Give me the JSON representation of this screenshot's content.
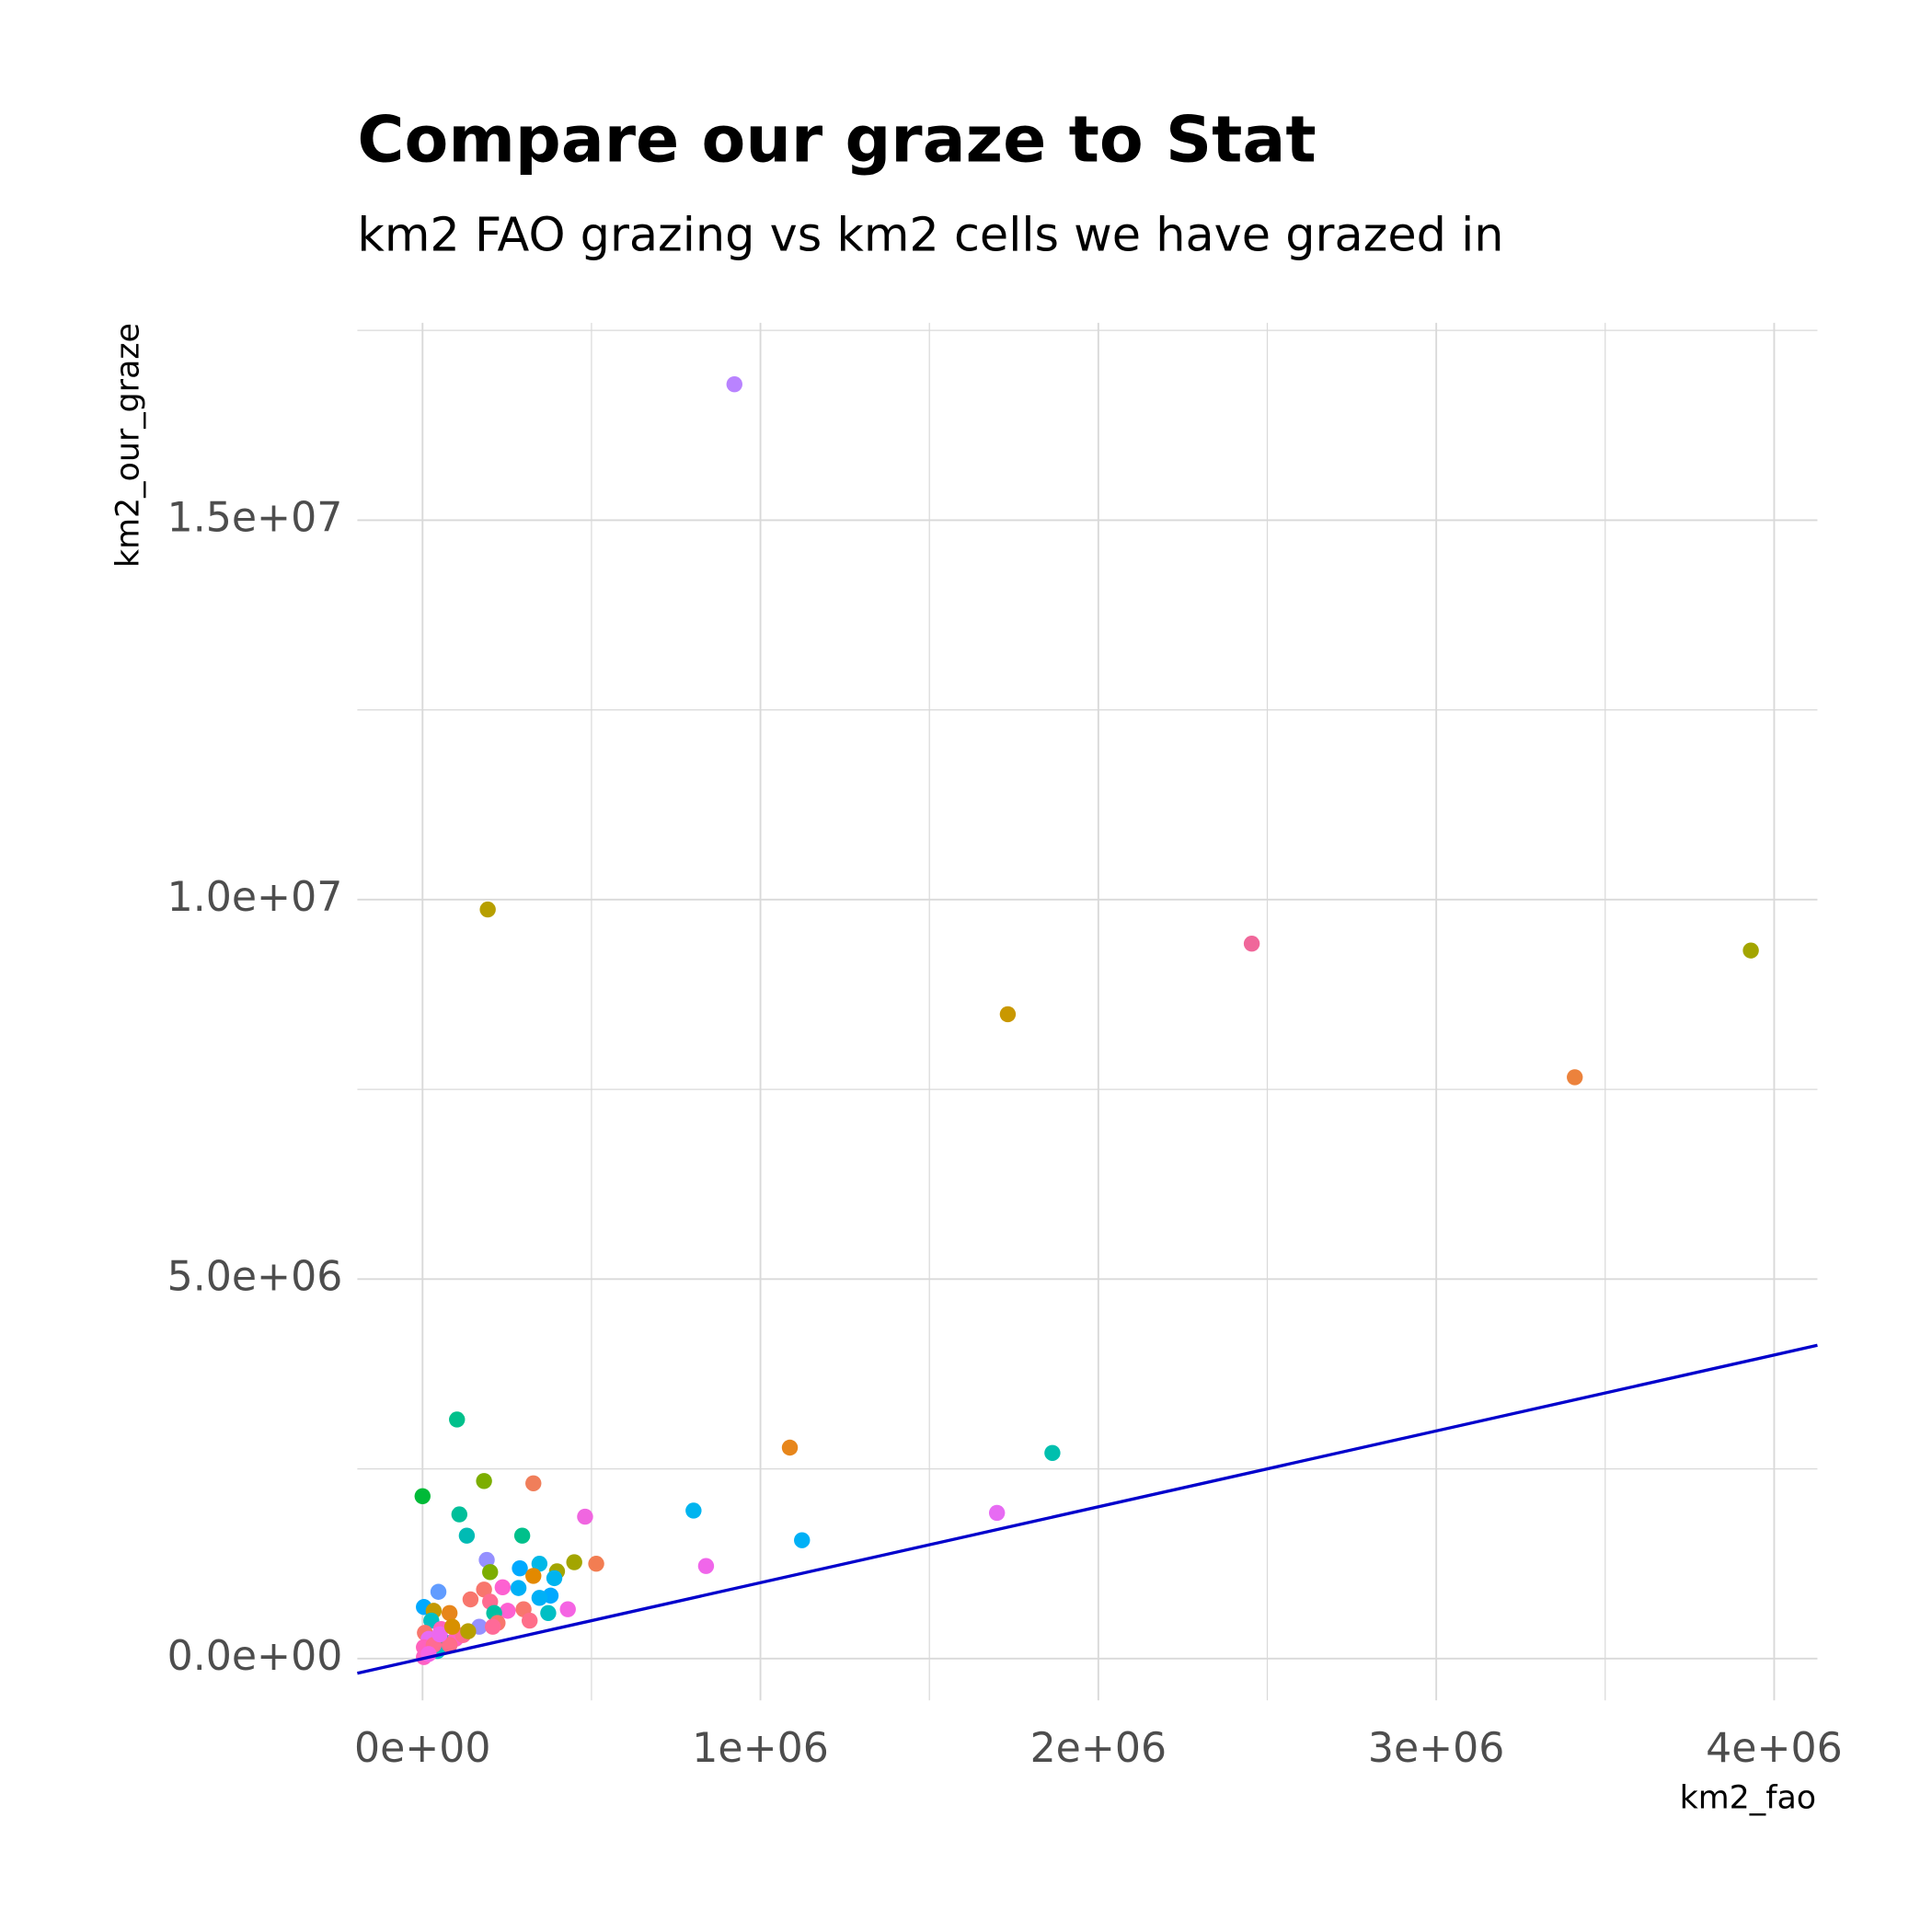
{
  "chart_data": {
    "type": "scatter",
    "title": "Compare our graze to Stat",
    "subtitle": "km2 FAO grazing vs km2 cells we have grazed in",
    "x_label": "km2_fao",
    "y_label": "km2_our_graze",
    "xlim": [
      -193000,
      4128000
    ],
    "ylim": [
      -550000,
      17600000
    ],
    "xticks": [
      {
        "value": 0,
        "label": "0e+00"
      },
      {
        "value": 1000000,
        "label": "1e+06"
      },
      {
        "value": 2000000,
        "label": "2e+06"
      },
      {
        "value": 3000000,
        "label": "3e+06"
      },
      {
        "value": 4000000,
        "label": "4e+06"
      }
    ],
    "yticks": [
      {
        "value": 0,
        "label": "0.0e+00"
      },
      {
        "value": 5000000,
        "label": "5.0e+06"
      },
      {
        "value": 10000000,
        "label": "1.0e+07"
      },
      {
        "value": 15000000,
        "label": "1.5e+07"
      }
    ],
    "xminor": [
      500000,
      1500000,
      2500000,
      3500000
    ],
    "yminor": [
      2500000,
      7500000,
      12500000,
      17500000
    ],
    "grid": true,
    "reference_line": {
      "slope": 1,
      "intercept": 0,
      "color": "#0000cc"
    },
    "x": [
      923000,
      193000,
      2454000,
      3931000,
      1732000,
      3410000,
      102000,
      1087000,
      1864000,
      182000,
      328000,
      0,
      802000,
      1700000,
      481000,
      109000,
      131000,
      295000,
      1123000,
      190000,
      449000,
      514000,
      346000,
      839000,
      288000,
      398000,
      200000,
      328000,
      390000,
      47000,
      284000,
      237000,
      182000,
      379000,
      346000,
      142000,
      200000,
      4000,
      299000,
      430000,
      252000,
      372000,
      80000,
      33000,
      212000,
      317000,
      222000,
      168000,
      208000,
      26000,
      55000,
      7000,
      18000,
      69000,
      98000,
      120000,
      135000,
      4000,
      44000,
      33000,
      80000,
      4000,
      18000,
      51000,
      88000
    ],
    "y": [
      16790000,
      9870000,
      9420000,
      9330000,
      8490000,
      7660000,
      3150000,
      2780000,
      2710000,
      2340000,
      2310000,
      2140000,
      1950000,
      1920000,
      1870000,
      1900000,
      1620000,
      1620000,
      1560000,
      1300000,
      1270000,
      1250000,
      1250000,
      1220000,
      1190000,
      1150000,
      1140000,
      1090000,
      1060000,
      880000,
      930000,
      940000,
      910000,
      830000,
      800000,
      780000,
      750000,
      680000,
      650000,
      650000,
      630000,
      600000,
      600000,
      630000,
      600000,
      500000,
      470000,
      420000,
      420000,
      500000,
      390000,
      340000,
      260000,
      210000,
      260000,
      310000,
      360000,
      150000,
      100000,
      180000,
      180000,
      20000,
      60000,
      320000,
      420000
    ],
    "point_colors": [
      "#b983ff",
      "#b79f00",
      "#f0679a",
      "#a3a500",
      "#c99800",
      "#ec823c",
      "#00c08b",
      "#e7861b",
      "#00bfae",
      "#7cae00",
      "#f07e5a",
      "#00ba38",
      "#00b4ef",
      "#e76bf3",
      "#f066e0",
      "#00bf9a",
      "#00bbb4",
      "#00c08b",
      "#00b0f6",
      "#9590ff",
      "#a3a500",
      "#f27d52",
      "#00b8e7",
      "#f066ea",
      "#00a9ff",
      "#a3a500",
      "#7cae00",
      "#e38900",
      "#00b4ef",
      "#619cff",
      "#00b0f6",
      "#fd61d1",
      "#f8766d",
      "#00a9ff",
      "#00b0f6",
      "#f8766d",
      "#ff6c91",
      "#00a9ff",
      "#f8766d",
      "#f564e3",
      "#fd61d1",
      "#00bfc4",
      "#e7861b",
      "#c49a00",
      "#00c1a3",
      "#fe6e8a",
      "#f8766d",
      "#9590ff",
      "#ff6a98",
      "#00bfc4",
      "#ff62bc",
      "#f8766d",
      "#e76bf3",
      "#00c08b",
      "#ff61c3",
      "#ff6c91",
      "#b79f00",
      "#ff62bc",
      "#00bfc4",
      "#ff6c91",
      "#fe6e8a",
      "#ff61c3",
      "#f564e3",
      "#ec69ef",
      "#d89000"
    ]
  }
}
